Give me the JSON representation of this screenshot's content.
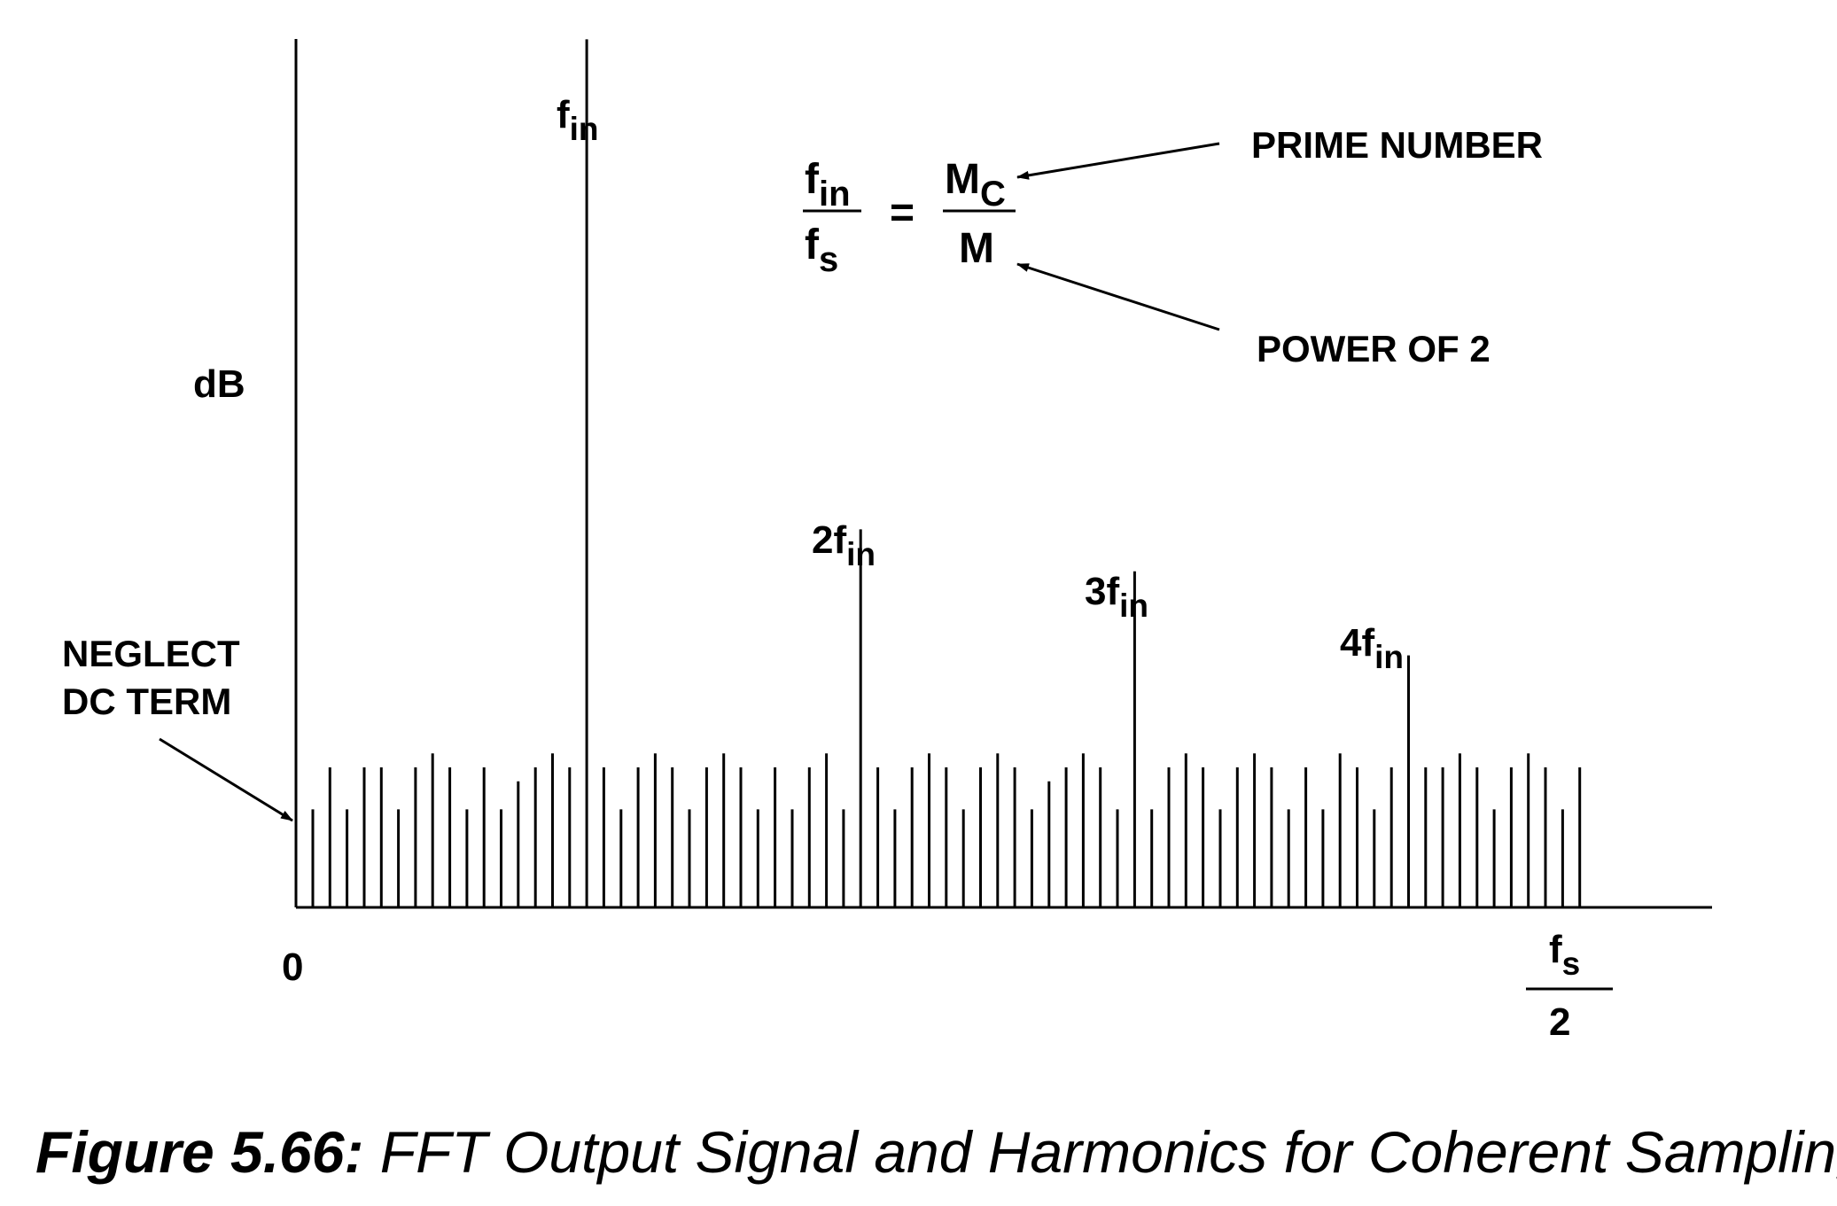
{
  "axis": {
    "y_label": "dB",
    "x_origin_label": "0",
    "x_end_label": {
      "numerator": "f",
      "numerator_sub": "s",
      "denominator": "2"
    }
  },
  "annotation_dc": {
    "line1": "NEGLECT",
    "line2": "DC TERM"
  },
  "fundamental": {
    "prefix": "",
    "base": "f",
    "sub": "in"
  },
  "harmonics": [
    {
      "prefix": "2",
      "base": "f",
      "sub": "in"
    },
    {
      "prefix": "3",
      "base": "f",
      "sub": "in"
    },
    {
      "prefix": "4",
      "base": "f",
      "sub": "in"
    }
  ],
  "equation": {
    "left_num": "f",
    "left_num_sub": "in",
    "left_den": "f",
    "left_den_sub": "s",
    "equals": "=",
    "right_num": "M",
    "right_num_sub": "C",
    "right_den": "M"
  },
  "notes": {
    "prime": "PRIME NUMBER",
    "power": "POWER OF 2"
  },
  "caption": {
    "figure": "Figure 5.66:",
    "text": " FFT Output Signal and Harmonics for Coherent Sampling"
  },
  "spectrum": {
    "bin_count": 75,
    "fundamental_bin": 16,
    "harmonic_bins": [
      32,
      48,
      64
    ],
    "noise_levels": [
      0.7,
      1.0,
      0.7,
      1.0,
      1.0,
      0.7,
      1.0,
      1.1,
      1.0,
      0.7,
      1.0,
      0.7,
      0.9,
      1.0,
      1.1,
      1.0,
      0.7,
      1.0,
      0.7,
      1.0,
      1.1,
      1.0,
      0.7,
      1.0,
      1.1,
      1.0,
      0.7,
      1.0,
      0.7,
      1.0,
      1.1,
      0.7,
      1.0,
      1.0,
      0.7,
      1.0,
      1.1,
      1.0,
      0.7,
      1.0,
      1.1,
      1.0,
      0.7,
      0.9,
      1.0,
      1.1,
      1.0,
      0.7,
      1.0,
      0.7,
      1.0,
      1.1,
      1.0,
      0.7,
      1.0,
      1.1,
      1.0,
      0.7,
      1.0,
      0.7,
      1.1,
      1.0,
      0.7,
      1.0,
      0.7,
      1.0,
      1.0,
      1.1,
      1.0,
      0.7,
      1.0,
      1.1,
      1.0,
      0.7,
      1.0
    ],
    "fundamental_level": 6.2,
    "harmonic_levels": [
      2.7,
      2.4,
      1.8
    ],
    "noise_unit_note": ""
  }
}
